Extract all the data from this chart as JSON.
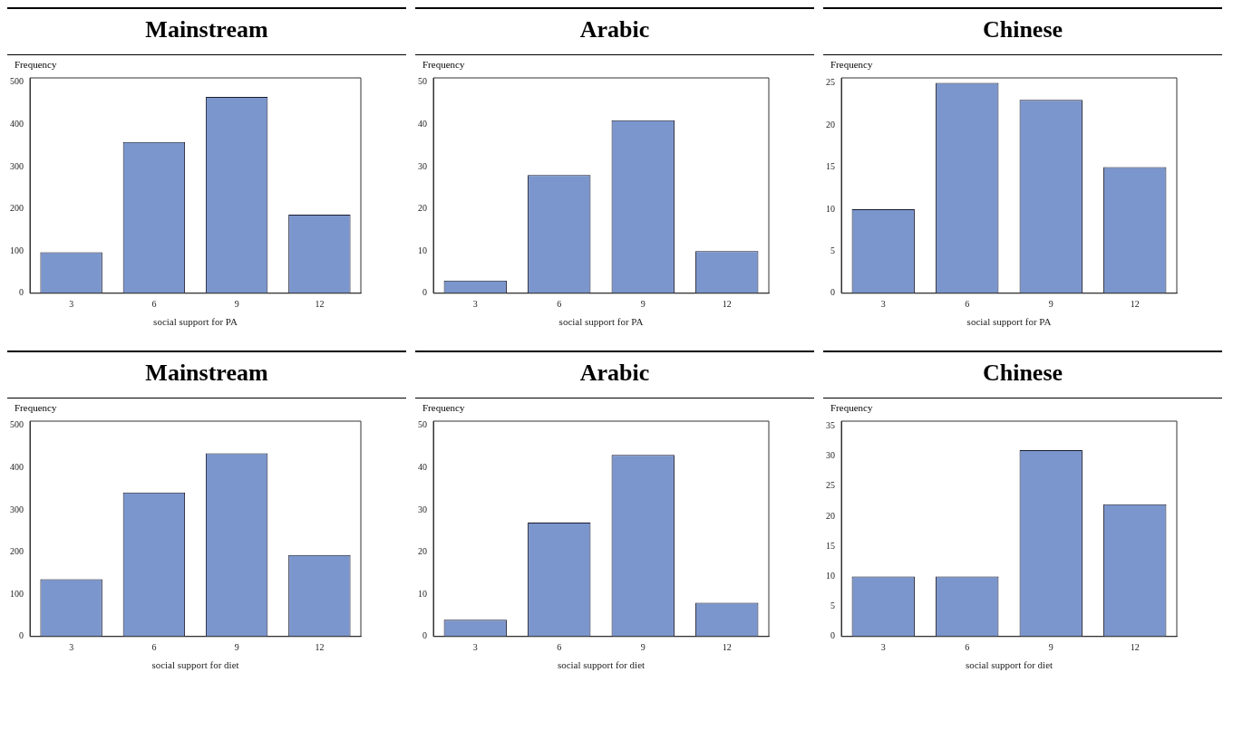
{
  "chart_data": [
    {
      "type": "bar",
      "title": "Mainstream",
      "ylabel": "Frequency",
      "xlabel": "social support for PA",
      "categories": [
        "3",
        "6",
        "9",
        "12"
      ],
      "values": [
        97,
        358,
        465,
        186
      ],
      "color": "#7b96cc",
      "ylim": [
        0,
        510
      ],
      "yticks": [
        0,
        100,
        200,
        300,
        400,
        500
      ],
      "grid": false,
      "legend": false
    },
    {
      "type": "bar",
      "title": "Arabic",
      "ylabel": "Frequency",
      "xlabel": "social support for PA",
      "categories": [
        "3",
        "6",
        "9",
        "12"
      ],
      "values": [
        3,
        28,
        41,
        10
      ],
      "color": "#7b96cc",
      "ylim": [
        0,
        51
      ],
      "yticks": [
        0,
        10,
        20,
        30,
        40,
        50
      ],
      "grid": false,
      "legend": false
    },
    {
      "type": "bar",
      "title": "Chinese",
      "ylabel": "Frequency",
      "xlabel": "social support for PA",
      "categories": [
        "3",
        "6",
        "9",
        "12"
      ],
      "values": [
        10,
        25,
        23,
        15
      ],
      "color": "#7b96cc",
      "ylim": [
        0,
        25.6
      ],
      "yticks": [
        0,
        5,
        10,
        15,
        20,
        25
      ],
      "grid": false,
      "legend": false
    },
    {
      "type": "bar",
      "title": "Mainstream",
      "ylabel": "Frequency",
      "xlabel": "social support for diet",
      "categories": [
        "3",
        "6",
        "9",
        "12"
      ],
      "values": [
        136,
        341,
        434,
        193
      ],
      "color": "#7b96cc",
      "ylim": [
        0,
        510
      ],
      "yticks": [
        0,
        100,
        200,
        300,
        400,
        500
      ],
      "grid": false,
      "legend": false
    },
    {
      "type": "bar",
      "title": "Arabic",
      "ylabel": "Frequency",
      "xlabel": "social support for diet",
      "categories": [
        "3",
        "6",
        "9",
        "12"
      ],
      "values": [
        4,
        27,
        43,
        8
      ],
      "color": "#7b96cc",
      "ylim": [
        0,
        51
      ],
      "yticks": [
        0,
        10,
        20,
        30,
        40,
        50
      ],
      "grid": false,
      "legend": false
    },
    {
      "type": "bar",
      "title": "Chinese",
      "ylabel": "Frequency",
      "xlabel": "social support for diet",
      "categories": [
        "3",
        "6",
        "9",
        "12"
      ],
      "values": [
        10,
        10,
        31,
        22
      ],
      "color": "#7b96cc",
      "ylim": [
        0,
        35.8
      ],
      "yticks": [
        0,
        5,
        10,
        15,
        20,
        25,
        30,
        35
      ],
      "grid": false,
      "legend": false
    }
  ]
}
